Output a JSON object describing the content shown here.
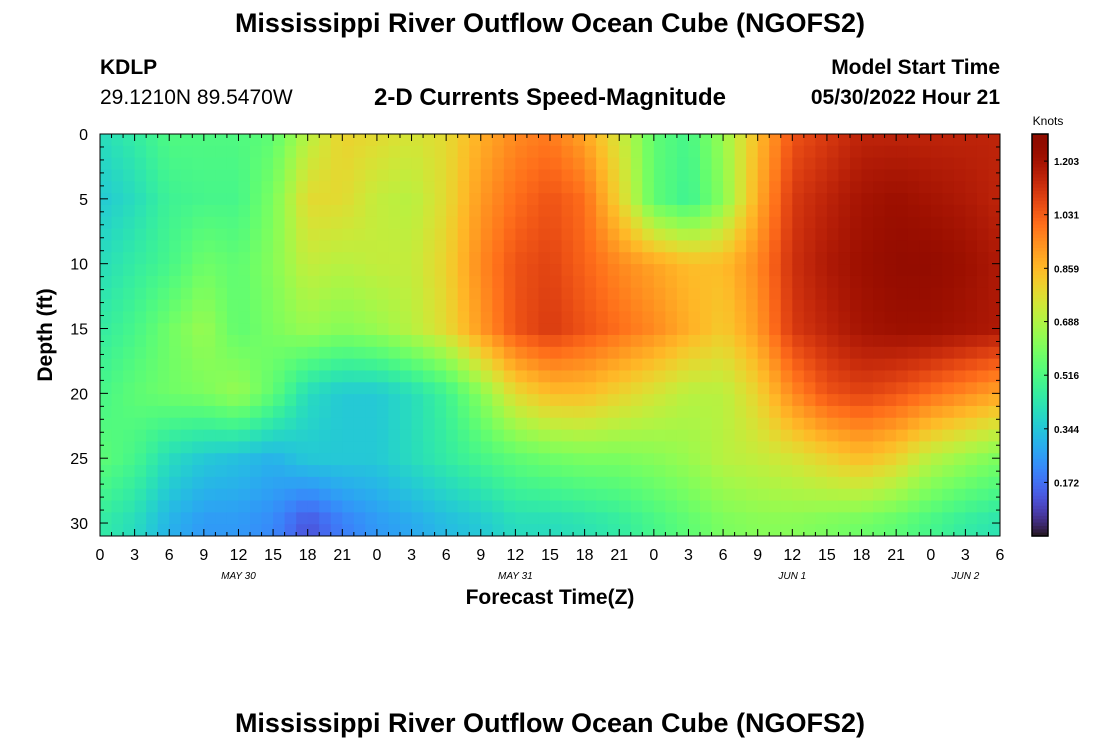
{
  "header": {
    "title": "Mississippi River Outflow Ocean Cube (NGOFS2)",
    "station_id": "KDLP",
    "station_coords": "29.1210N  89.5470W",
    "subtitle": "2-D Currents Speed-Magnitude",
    "model_start_label": "Model Start Time",
    "model_start_value": "05/30/2022 Hour 21"
  },
  "footer": {
    "title": "Mississippi River Outflow Ocean Cube (NGOFS2)"
  },
  "chart_data": {
    "type": "heatmap",
    "title": "2-D Currents Speed-Magnitude",
    "xlabel": "Forecast Time(Z)",
    "ylabel": "Depth (ft)",
    "x_tick_labels": [
      "0",
      "3",
      "6",
      "9",
      "12",
      "15",
      "18",
      "21",
      "0",
      "3",
      "6",
      "9",
      "12",
      "15",
      "18",
      "21",
      "0",
      "3",
      "6",
      "9",
      "12",
      "15",
      "18",
      "21",
      "0",
      "3",
      "6"
    ],
    "date_labels": [
      {
        "label": "MAY 30",
        "tick_index": 4
      },
      {
        "label": "MAY 31",
        "tick_index": 12
      },
      {
        "label": "JUN 1",
        "tick_index": 20
      },
      {
        "label": "JUN 2",
        "tick_index": 25
      }
    ],
    "y_ticks": [
      0,
      5,
      10,
      15,
      20,
      25,
      30
    ],
    "ylim": [
      0,
      31
    ],
    "y_inverted": true,
    "colorbar": {
      "unit": "Knots",
      "range": [
        0.0,
        1.29
      ],
      "tick_values": [
        0.172,
        0.344,
        0.516,
        0.688,
        0.859,
        1.031,
        1.203
      ],
      "tick_labels": [
        "0.172",
        "0.344",
        "0.516",
        "0.688",
        "0.859",
        "1.031",
        "1.203"
      ],
      "colormap": "turbo"
    },
    "grid_note": "speed (knots) sampled every 3 hours (columns) at depths 0-30 ft (rows)",
    "depths": [
      0,
      5,
      10,
      15,
      20,
      25,
      30
    ],
    "values": [
      [
        0.4,
        0.45,
        0.52,
        0.52,
        0.52,
        0.55,
        0.7,
        0.8,
        0.78,
        0.75,
        0.78,
        0.88,
        0.95,
        0.98,
        0.9,
        0.75,
        0.55,
        0.5,
        0.65,
        0.85,
        1.05,
        1.1,
        1.15,
        1.15,
        1.15,
        1.15,
        1.15
      ],
      [
        0.35,
        0.4,
        0.48,
        0.5,
        0.5,
        0.6,
        0.78,
        0.78,
        0.72,
        0.7,
        0.78,
        0.92,
        1.0,
        1.05,
        1.0,
        0.8,
        0.55,
        0.48,
        0.62,
        0.88,
        1.1,
        1.15,
        1.2,
        1.22,
        1.2,
        1.18,
        1.15
      ],
      [
        0.4,
        0.45,
        0.5,
        0.58,
        0.55,
        0.62,
        0.72,
        0.7,
        0.72,
        0.72,
        0.8,
        0.95,
        1.05,
        1.08,
        1.02,
        0.95,
        0.9,
        0.85,
        0.85,
        0.95,
        1.12,
        1.18,
        1.22,
        1.25,
        1.25,
        1.22,
        1.18
      ],
      [
        0.45,
        0.5,
        0.58,
        0.65,
        0.55,
        0.6,
        0.65,
        0.62,
        0.65,
        0.7,
        0.78,
        0.92,
        1.05,
        1.1,
        1.05,
        1.0,
        0.95,
        0.88,
        0.82,
        0.92,
        1.1,
        1.15,
        1.2,
        1.22,
        1.22,
        1.2,
        1.18
      ],
      [
        0.5,
        0.55,
        0.58,
        0.6,
        0.65,
        0.55,
        0.4,
        0.35,
        0.35,
        0.4,
        0.48,
        0.62,
        0.78,
        0.85,
        0.85,
        0.8,
        0.75,
        0.7,
        0.7,
        0.8,
        0.95,
        1.05,
        1.08,
        1.05,
        1.0,
        0.95,
        0.9
      ],
      [
        0.55,
        0.5,
        0.4,
        0.35,
        0.33,
        0.3,
        0.35,
        0.35,
        0.35,
        0.4,
        0.45,
        0.5,
        0.55,
        0.58,
        0.6,
        0.6,
        0.62,
        0.65,
        0.7,
        0.72,
        0.75,
        0.8,
        0.85,
        0.8,
        0.7,
        0.65,
        0.6
      ],
      [
        0.45,
        0.4,
        0.3,
        0.25,
        0.25,
        0.22,
        0.12,
        0.2,
        0.25,
        0.28,
        0.32,
        0.35,
        0.4,
        0.4,
        0.42,
        0.45,
        0.5,
        0.55,
        0.6,
        0.62,
        0.62,
        0.6,
        0.58,
        0.55,
        0.5,
        0.45,
        0.42
      ]
    ]
  }
}
